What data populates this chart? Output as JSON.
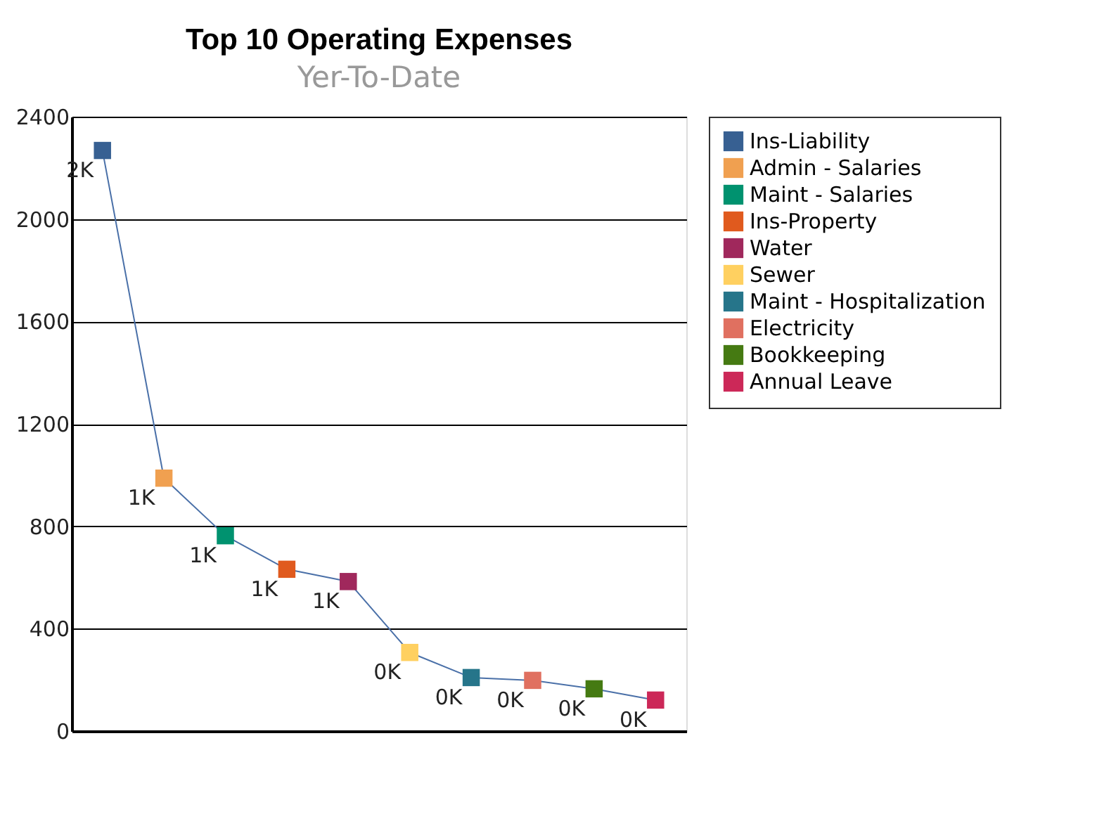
{
  "chart_data": {
    "type": "scatter",
    "title": "Top 10 Operating Expenses",
    "subtitle": "Yer-To-Date",
    "categories": [
      null,
      null,
      null,
      null,
      null,
      null,
      null,
      null,
      null,
      null
    ],
    "series": [
      {
        "type": "line",
        "marker": "none",
        "color": "#4a70a8",
        "values": [
          2268,
          988,
          763,
          632,
          584,
          307,
          209,
          198,
          165,
          121
        ],
        "value_labels": [
          "2K",
          "1K",
          "1K",
          "1K",
          "1K",
          "0K",
          "0K",
          "0K",
          "0K",
          "0K"
        ]
      },
      {
        "name": "Ins-Liability",
        "color": "#376092",
        "values": [
          2268,
          null,
          null,
          null,
          null,
          null,
          null,
          null,
          null,
          null
        ]
      },
      {
        "name": "Admin - Salaries",
        "color": "#f0a050",
        "values": [
          null,
          988,
          null,
          null,
          null,
          null,
          null,
          null,
          null,
          null
        ]
      },
      {
        "name": "Maint - Salaries",
        "color": "#00926f",
        "values": [
          null,
          null,
          763,
          null,
          null,
          null,
          null,
          null,
          null,
          null
        ]
      },
      {
        "name": "Ins-Property",
        "color": "#e05a1e",
        "values": [
          null,
          null,
          null,
          632,
          null,
          null,
          null,
          null,
          null,
          null
        ]
      },
      {
        "name": "Water",
        "color": "#a0285c",
        "values": [
          null,
          null,
          null,
          null,
          584,
          null,
          null,
          null,
          null,
          null
        ]
      },
      {
        "name": "Sewer",
        "color": "#ffd060",
        "values": [
          null,
          null,
          null,
          null,
          null,
          307,
          null,
          null,
          null,
          null
        ]
      },
      {
        "name": "Maint - Hospitalization",
        "color": "#26758a",
        "values": [
          null,
          null,
          null,
          null,
          null,
          null,
          209,
          null,
          null,
          null
        ]
      },
      {
        "name": "Electricity",
        "color": "#e07060",
        "values": [
          null,
          null,
          null,
          null,
          null,
          null,
          null,
          198,
          null,
          null
        ]
      },
      {
        "name": "Bookkeeping",
        "color": "#457a12",
        "values": [
          null,
          null,
          null,
          null,
          null,
          null,
          null,
          null,
          165,
          null
        ]
      },
      {
        "name": "Annual Leave",
        "color": "#cc2858",
        "values": [
          null,
          null,
          null,
          null,
          null,
          null,
          null,
          null,
          null,
          121
        ]
      }
    ],
    "ylim": [
      0,
      2400
    ],
    "yticks": [
      0,
      400,
      800,
      {
        "value": 1200,
        "label": "1200"
      },
      {
        "value": 1600,
        "label": "1600"
      },
      {
        "value": 2000,
        "label": "2000"
      },
      {
        "value": 2400,
        "label": "2400"
      }
    ],
    "grid": "y",
    "legend": "right",
    "tick_labels": "y",
    "marker": "square",
    "line_style": "solid"
  }
}
